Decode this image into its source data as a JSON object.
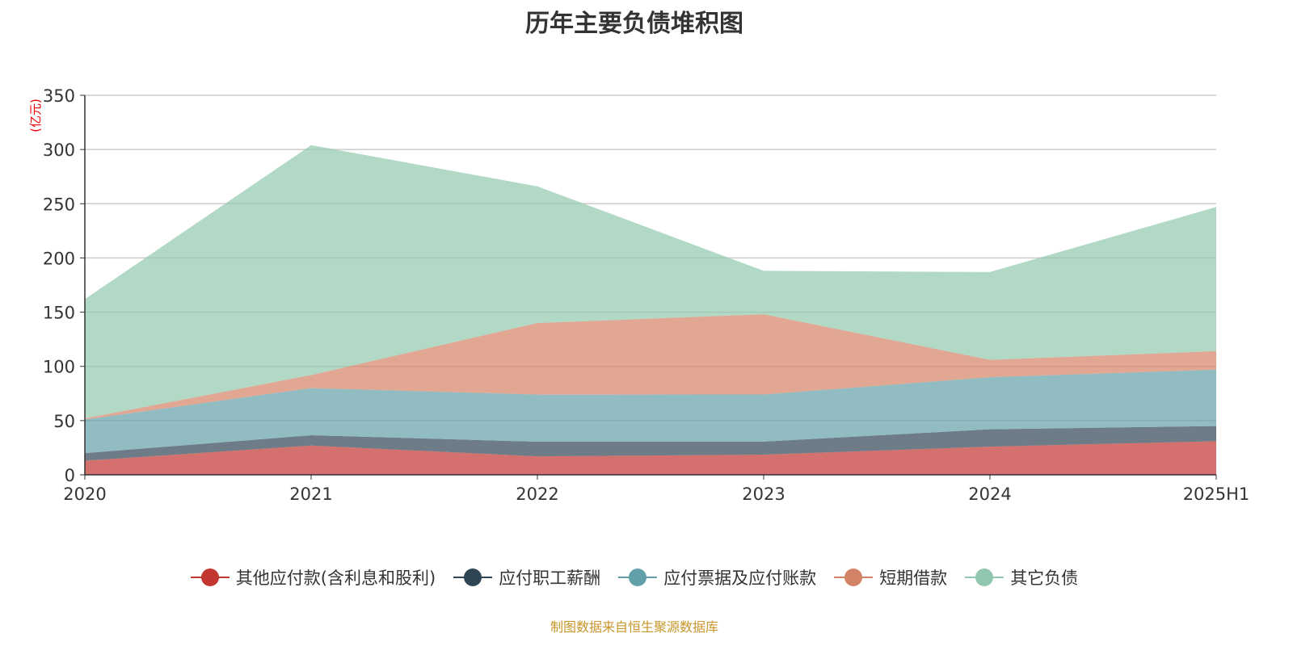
{
  "title": "历年主要负债堆积图",
  "source": "制图数据来自恒生聚源数据库",
  "chart_data": {
    "type": "area",
    "stacked": true,
    "title": "历年主要负债堆积图",
    "ylabel": "(亿元)",
    "xlabel": "",
    "ylim": [
      0,
      350
    ],
    "yticks": [
      0,
      50,
      100,
      150,
      200,
      250,
      300,
      350
    ],
    "grid": true,
    "legend_position": "bottom",
    "categories": [
      "2020",
      "2021",
      "2022",
      "2023",
      "2024",
      "2025H1"
    ],
    "series": [
      {
        "name": "其他应付款(含利息和股利)",
        "color": "#c23531",
        "values": [
          13,
          27,
          17,
          18.6,
          26,
          31
        ]
      },
      {
        "name": "应付职工薪酬",
        "color": "#2f4554",
        "values": [
          7,
          9.5,
          13.5,
          12,
          16,
          14
        ]
      },
      {
        "name": "应付票据及应付账款",
        "color": "#61a0a8",
        "values": [
          31,
          43.5,
          43.5,
          43.5,
          48,
          52
        ]
      },
      {
        "name": "短期借款",
        "color": "#d48265",
        "values": [
          1,
          12,
          66,
          74,
          16,
          17
        ]
      },
      {
        "name": "其它负债",
        "color": "#91c7ae",
        "values": [
          110,
          212,
          126,
          40,
          81,
          133
        ]
      }
    ]
  }
}
